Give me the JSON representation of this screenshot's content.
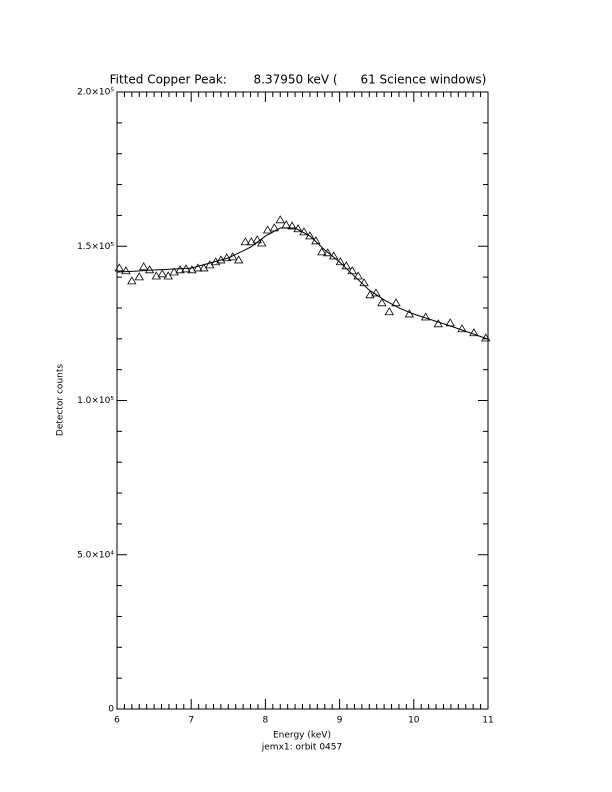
{
  "chart_data": {
    "type": "scatter",
    "title": "Fitted Copper Peak:       8.37950 keV (      61 Science windows)",
    "x_label": "Energy (keV)",
    "subtitle": "jemx1: orbit 0457",
    "y_label": "Detector counts",
    "xlim": [
      6,
      11
    ],
    "xticks": [
      6,
      7,
      8,
      9,
      10,
      11
    ],
    "xminor": 10,
    "ylim": [
      0,
      200000
    ],
    "yticks": [
      {
        "value": 0,
        "label": "0"
      },
      {
        "value": 50000,
        "label": "5.0×10⁴"
      },
      {
        "value": 100000,
        "label": "1.0×10⁵"
      },
      {
        "value": 150000,
        "label": "1.5×10⁵"
      },
      {
        "value": 200000,
        "label": "2.0×10⁵"
      }
    ],
    "yminor": 5,
    "series": [
      {
        "type": "scatter",
        "marker": "triangle",
        "color": "#000000",
        "x": [
          6.03,
          6.12,
          6.2,
          6.3,
          6.36,
          6.44,
          6.53,
          6.61,
          6.69,
          6.77,
          6.85,
          6.93,
          7.01,
          7.09,
          7.17,
          7.25,
          7.33,
          7.4,
          7.48,
          7.56,
          7.64,
          7.73,
          7.81,
          7.89,
          7.95,
          8.03,
          8.12,
          8.2,
          8.28,
          8.36,
          8.44,
          8.52,
          8.6,
          8.68,
          8.76,
          8.84,
          8.92,
          9.01,
          9.09,
          9.17,
          9.25,
          9.33,
          9.41,
          9.49,
          9.57,
          9.67,
          9.76,
          9.94,
          10.16,
          10.33,
          10.49,
          10.65,
          10.81,
          10.97
        ],
        "values": [
          142900,
          142000,
          138700,
          140000,
          143300,
          142300,
          140300,
          141000,
          140300,
          141600,
          142300,
          142600,
          142300,
          142900,
          142900,
          143900,
          144900,
          145500,
          146200,
          146500,
          145500,
          151400,
          151400,
          152000,
          151000,
          155200,
          155900,
          158500,
          156900,
          156500,
          155600,
          154600,
          153300,
          151700,
          148100,
          147800,
          146800,
          144900,
          143600,
          142000,
          140300,
          138100,
          134200,
          134800,
          131600,
          128700,
          131600,
          128000,
          127000,
          124800,
          125100,
          123200,
          121900,
          120200
        ]
      },
      {
        "type": "line",
        "color": "#000000",
        "x": [
          6.0,
          6.5,
          7.0,
          7.5,
          7.8,
          8.0,
          8.2,
          8.4,
          8.6,
          8.8,
          9.0,
          9.2,
          9.4,
          9.6,
          9.8,
          10.0,
          10.5,
          11.0
        ],
        "values": [
          141600,
          142300,
          142900,
          146200,
          149700,
          153300,
          155900,
          155900,
          153300,
          148800,
          144900,
          140300,
          135800,
          132600,
          130000,
          128000,
          124100,
          119900
        ]
      }
    ]
  }
}
